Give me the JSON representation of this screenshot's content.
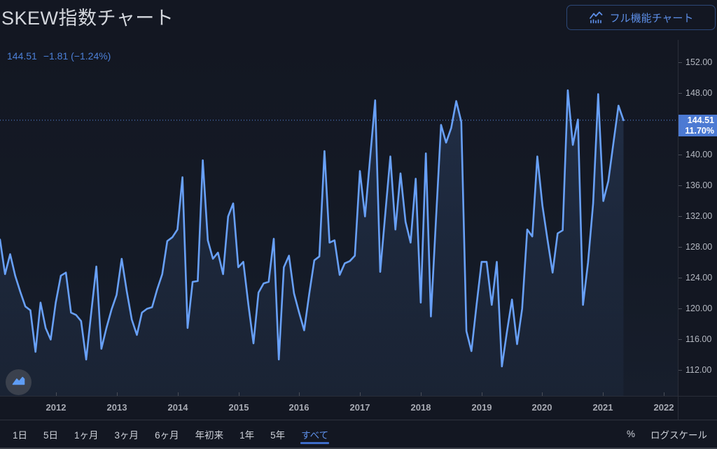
{
  "header": {
    "title": "SKEW指数チャート",
    "full_chart_button": "フル機能チャート"
  },
  "chart": {
    "price_info": {
      "price": "144.51",
      "change": "−1.81 (−1.24%)"
    },
    "price_label": {
      "price": "144.51",
      "percent": "11.70%"
    }
  },
  "toolbar": {
    "ranges": [
      "1日",
      "5日",
      "1ヶ月",
      "3ヶ月",
      "6ヶ月",
      "年初来",
      "1年",
      "5年",
      "すべて"
    ],
    "selected_range": "すべて",
    "percent_label": "%",
    "log_scale_label": "ログスケール"
  },
  "colors": {
    "accent": "#5d8fe8",
    "line": "#68a0f7",
    "label_bg": "#4c7ad3"
  },
  "chart_data": {
    "type": "area",
    "title": "SKEW指数チャート",
    "series_name": "SKEW",
    "frequency": "monthly",
    "x_start_month": "2011-02",
    "x_end_month": "2021-05",
    "x_labels": [
      "2012",
      "2013",
      "2014",
      "2015",
      "2016",
      "2017",
      "2018",
      "2019",
      "2020",
      "2021",
      "2022"
    ],
    "y_axis_labels": [
      "152.00",
      "148.00",
      "140.00",
      "136.00",
      "132.00",
      "128.00",
      "124.00",
      "120.00",
      "116.00",
      "112.00"
    ],
    "y_tick_values": [
      152,
      148,
      140,
      136,
      132,
      128,
      124,
      120,
      116,
      112
    ],
    "ylim": [
      108.7,
      155
    ],
    "grid": "off",
    "legend": "none",
    "last_value": 144.51,
    "change": -1.81,
    "change_percent": -1.24,
    "percent_label_value": "11.70%",
    "monthly_values": [
      129.0,
      124.5,
      127.1,
      124.3,
      122.2,
      120.3,
      119.8,
      114.4,
      120.8,
      117.5,
      116.0,
      120.8,
      124.3,
      124.7,
      119.5,
      119.2,
      118.4,
      113.4,
      119.5,
      125.5,
      114.8,
      117.5,
      119.9,
      121.8,
      126.5,
      122.3,
      118.6,
      116.6,
      119.5,
      120.0,
      120.2,
      122.5,
      124.5,
      128.8,
      129.3,
      130.3,
      137.1,
      117.5,
      123.5,
      123.6,
      139.3,
      128.9,
      126.5,
      127.3,
      124.5,
      132.0,
      133.7,
      125.4,
      126.1,
      120.5,
      115.5,
      122.1,
      123.3,
      123.5,
      129.1,
      113.4,
      125.4,
      126.9,
      122.0,
      119.5,
      117.2,
      121.9,
      126.3,
      126.8,
      140.5,
      128.6,
      128.9,
      124.4,
      125.9,
      126.2,
      126.9,
      137.9,
      132.0,
      139.5,
      147.1,
      124.8,
      132.3,
      139.8,
      130.3,
      137.6,
      131.3,
      128.6,
      136.9,
      120.8,
      140.2,
      119.0,
      131.5,
      143.9,
      141.6,
      143.5,
      147.0,
      144.3,
      117.1,
      114.5,
      120.5,
      126.1,
      126.1,
      120.5,
      126.1,
      112.5,
      117.0,
      121.2,
      115.4,
      120.0,
      130.3,
      129.4,
      139.8,
      133.4,
      129.0,
      124.7,
      129.8,
      130.2,
      148.4,
      141.3,
      144.6,
      120.5,
      126.0,
      133.7,
      147.9,
      134.0,
      136.6,
      141.5,
      146.4,
      144.51
    ]
  }
}
